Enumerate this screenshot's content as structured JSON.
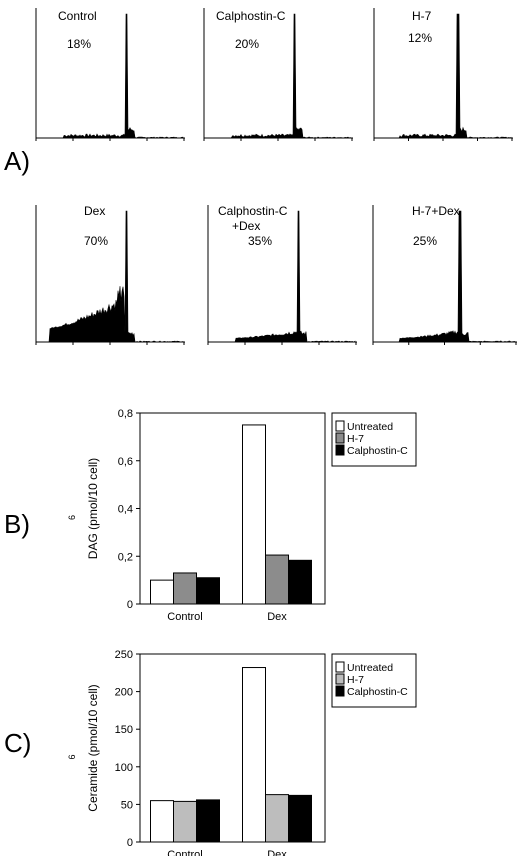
{
  "panel_labels": [
    "A)",
    "B)",
    "C)"
  ],
  "histograms": [
    {
      "label": "Control",
      "label2": "",
      "percent": "18%",
      "shape": "flat"
    },
    {
      "label": "Calphostin-C",
      "label2": "",
      "percent": "20%",
      "shape": "flat"
    },
    {
      "label": "H-7",
      "label2": "",
      "percent": "12%",
      "shape": "flat"
    },
    {
      "label": "Dex",
      "label2": "",
      "percent": "70%",
      "shape": "high"
    },
    {
      "label": "Calphostin-C",
      "label2": "+Dex",
      "percent": "35%",
      "shape": "low"
    },
    {
      "label": "H-7+Dex",
      "label2": "",
      "percent": "25%",
      "shape": "low"
    }
  ],
  "chart_data": [
    {
      "type": "bar",
      "ylabel": "DAG (pmol/10 cell)",
      "ylabel_superscript": "6",
      "categories": [
        "Control",
        "Dex"
      ],
      "series": [
        {
          "name": "Untreated",
          "values": [
            0.1,
            0.75
          ],
          "color": "#ffffff"
        },
        {
          "name": "H-7",
          "values": [
            0.13,
            0.205
          ],
          "color": "#8c8c8c"
        },
        {
          "name": "Calphostin-C",
          "values": [
            0.11,
            0.183
          ],
          "color": "#000000"
        }
      ],
      "ylim": [
        0,
        0.8
      ],
      "yticks": [
        0,
        0.2,
        0.4,
        0.6,
        0.8
      ],
      "yticklabels": [
        "0",
        "0,2",
        "0,4",
        "0,6",
        "0,8"
      ],
      "legend_position": "top-right"
    },
    {
      "type": "bar",
      "ylabel": "Ceramide (pmol/10 cell)",
      "ylabel_superscript": "6",
      "categories": [
        "Control",
        "Dex"
      ],
      "series": [
        {
          "name": "Untreated",
          "values": [
            55,
            232
          ],
          "color": "#ffffff"
        },
        {
          "name": "H-7",
          "values": [
            54,
            63
          ],
          "color": "#bdbdbd"
        },
        {
          "name": "Calphostin-C",
          "values": [
            56,
            62
          ],
          "color": "#000000"
        }
      ],
      "ylim": [
        0,
        250
      ],
      "yticks": [
        0,
        50,
        100,
        150,
        200,
        250
      ],
      "yticklabels": [
        "0",
        "50",
        "100",
        "150",
        "200",
        "250"
      ],
      "legend_position": "top-right"
    }
  ]
}
